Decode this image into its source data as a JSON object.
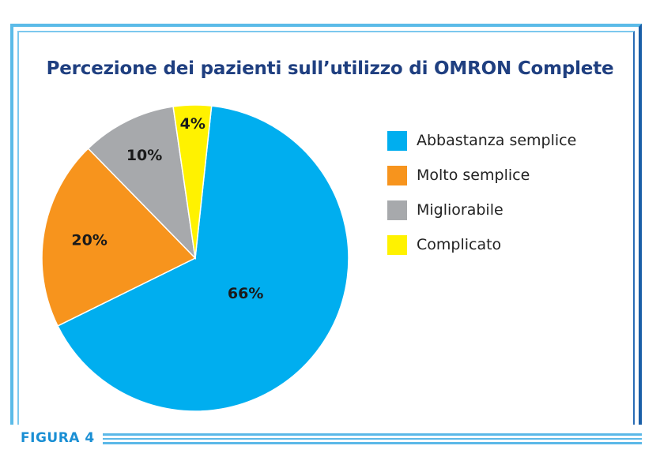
{
  "chart_data": {
    "type": "pie",
    "title": "Percezione dei pazienti sull’utilizzo di OMRON Complete",
    "legend_position": "right",
    "slices": [
      {
        "name": "Abbastanza semplice",
        "value": 66,
        "label": "66%",
        "color": "#00aeef"
      },
      {
        "name": "Molto semplice",
        "value": 20,
        "label": "20%",
        "color": "#f7941d"
      },
      {
        "name": "Migliorabile",
        "value": 10,
        "label": "10%",
        "color": "#a7a9ac"
      },
      {
        "name": "Complicato",
        "value": 4,
        "label": "4%",
        "color": "#fff200"
      }
    ]
  },
  "footer": {
    "figure_label": "FIGURA 4"
  }
}
